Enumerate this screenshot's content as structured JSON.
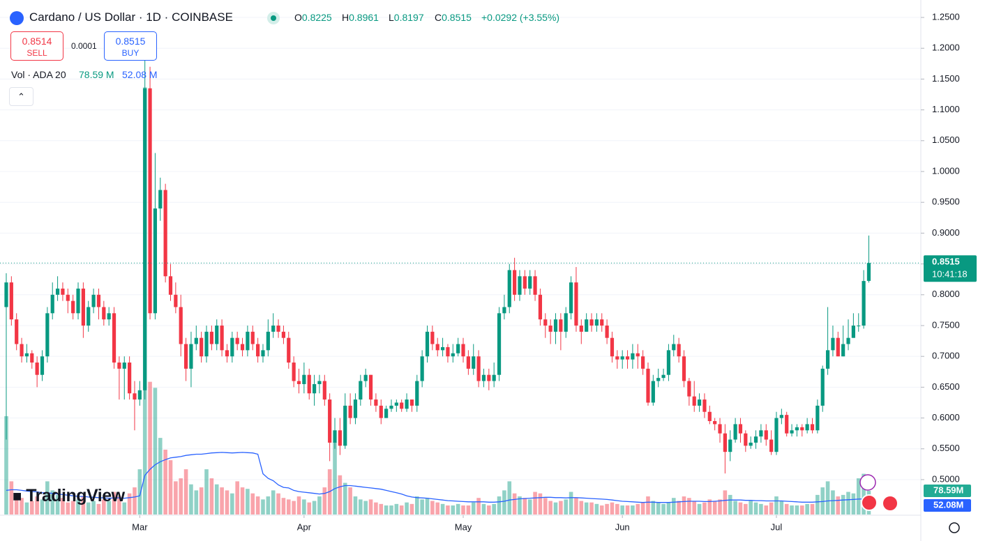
{
  "header": {
    "symbol": "Cardano / US Dollar · 1D · COINBASE",
    "ohlc_labels": [
      "O",
      "H",
      "L",
      "C"
    ],
    "change": "+0.0292 (+3.55%)"
  },
  "trade": {
    "sell_price": 0.8514,
    "sell_label": "SELL",
    "spread": 0.0001,
    "buy_price": 0.8515,
    "buy_label": "BUY"
  },
  "branding": "TradingView",
  "chart_data": {
    "type": "candlestick",
    "categories": [
      null,
      null,
      null,
      null,
      null,
      null,
      null,
      null,
      null,
      null,
      null,
      null,
      null,
      null,
      null,
      null,
      null,
      null,
      null,
      null,
      null,
      null,
      null,
      null,
      null,
      null,
      "Mar",
      null,
      null,
      null,
      null,
      null,
      null,
      null,
      null,
      null,
      null,
      null,
      null,
      null,
      null,
      null,
      null,
      null,
      null,
      null,
      null,
      null,
      null,
      null,
      null,
      null,
      null,
      null,
      null,
      null,
      null,
      null,
      "Apr",
      null,
      null,
      null,
      null,
      null,
      null,
      null,
      null,
      null,
      null,
      null,
      null,
      null,
      null,
      null,
      null,
      null,
      null,
      null,
      null,
      null,
      null,
      null,
      null,
      null,
      null,
      null,
      null,
      null,
      null,
      "May",
      null,
      null,
      null,
      null,
      null,
      null,
      null,
      null,
      null,
      null,
      null,
      null,
      null,
      null,
      null,
      null,
      null,
      null,
      null,
      null,
      null,
      null,
      null,
      null,
      null,
      null,
      null,
      null,
      null,
      null,
      "Jun",
      null,
      null,
      null,
      null,
      null,
      null,
      null,
      null,
      null,
      null,
      null,
      null,
      null,
      null,
      null,
      null,
      null,
      null,
      null,
      null,
      null,
      null,
      null,
      null,
      null,
      null,
      null,
      null,
      null,
      "Jul",
      null,
      null,
      null,
      null,
      null,
      null,
      null,
      null,
      null,
      null,
      null,
      null,
      null,
      null,
      null,
      null,
      null,
      null
    ],
    "open": [
      0.78,
      0.82,
      0.76,
      0.72,
      0.7,
      0.705,
      0.69,
      0.67,
      0.7,
      0.77,
      0.8,
      0.81,
      0.8,
      0.79,
      0.77,
      0.81,
      0.75,
      0.78,
      0.8,
      0.78,
      0.76,
      0.77,
      0.69,
      0.68,
      0.69,
      0.64,
      0.63,
      0.645,
      1.135,
      0.77,
      0.94,
      0.97,
      0.83,
      0.8,
      0.78,
      0.72,
      0.68,
      0.72,
      0.73,
      0.7,
      0.74,
      0.72,
      0.75,
      0.71,
      0.7,
      0.73,
      0.72,
      0.71,
      0.74,
      0.72,
      0.7,
      0.71,
      0.74,
      0.75,
      0.74,
      0.73,
      0.69,
      0.66,
      0.655,
      0.67,
      0.64,
      0.655,
      0.66,
      0.63,
      0.56,
      0.58,
      0.555,
      0.62,
      0.6,
      0.63,
      0.66,
      0.67,
      0.63,
      0.62,
      0.6,
      0.615,
      0.62,
      0.625,
      0.615,
      0.63,
      0.62,
      0.66,
      0.7,
      0.74,
      0.72,
      0.71,
      0.715,
      0.7,
      0.705,
      0.72,
      0.7,
      0.68,
      0.7,
      0.66,
      0.67,
      0.66,
      0.67,
      0.77,
      0.78,
      0.84,
      0.8,
      0.83,
      0.81,
      0.83,
      0.8,
      0.76,
      0.75,
      0.74,
      0.76,
      0.74,
      0.77,
      0.82,
      0.75,
      0.74,
      0.76,
      0.75,
      0.76,
      0.75,
      0.73,
      0.7,
      0.695,
      0.7,
      0.695,
      0.705,
      0.7,
      0.68,
      0.625,
      0.66,
      0.665,
      0.67,
      0.71,
      0.72,
      0.7,
      0.66,
      0.635,
      0.62,
      0.63,
      0.61,
      0.595,
      0.59,
      0.575,
      0.545,
      0.565,
      0.59,
      0.575,
      0.555,
      0.56,
      0.57,
      0.58,
      0.565,
      0.545,
      0.6,
      0.605,
      0.575,
      0.58,
      0.585,
      0.58,
      0.59,
      0.58,
      0.62,
      0.68,
      0.71,
      0.73,
      0.7,
      0.72,
      0.73,
      0.75,
      0.75,
      0.8225
    ],
    "high": [
      0.835,
      0.83,
      0.77,
      0.73,
      0.72,
      0.71,
      0.7,
      0.71,
      0.78,
      0.82,
      0.83,
      0.82,
      0.81,
      0.8,
      0.82,
      0.82,
      0.79,
      0.81,
      0.81,
      0.79,
      0.78,
      0.78,
      0.7,
      0.7,
      0.7,
      0.66,
      0.66,
      1.18,
      1.17,
      1.03,
      0.99,
      0.98,
      0.85,
      0.82,
      0.8,
      0.73,
      0.74,
      0.75,
      0.74,
      0.75,
      0.75,
      0.76,
      0.76,
      0.72,
      0.74,
      0.74,
      0.73,
      0.75,
      0.75,
      0.73,
      0.72,
      0.76,
      0.77,
      0.76,
      0.75,
      0.74,
      0.7,
      0.68,
      0.69,
      0.68,
      0.67,
      0.67,
      0.67,
      0.64,
      0.6,
      0.6,
      0.64,
      0.64,
      0.64,
      0.67,
      0.68,
      0.67,
      0.64,
      0.63,
      0.62,
      0.63,
      0.63,
      0.63,
      0.64,
      0.63,
      0.67,
      0.71,
      0.75,
      0.75,
      0.73,
      0.73,
      0.72,
      0.72,
      0.73,
      0.73,
      0.71,
      0.72,
      0.71,
      0.68,
      0.68,
      0.69,
      0.78,
      0.8,
      0.85,
      0.86,
      0.84,
      0.84,
      0.84,
      0.84,
      0.81,
      0.77,
      0.76,
      0.77,
      0.77,
      0.78,
      0.83,
      0.845,
      0.76,
      0.77,
      0.77,
      0.77,
      0.77,
      0.76,
      0.74,
      0.71,
      0.71,
      0.71,
      0.72,
      0.72,
      0.71,
      0.69,
      0.67,
      0.68,
      0.68,
      0.72,
      0.735,
      0.73,
      0.71,
      0.665,
      0.66,
      0.64,
      0.64,
      0.62,
      0.6,
      0.6,
      0.59,
      0.58,
      0.6,
      0.6,
      0.58,
      0.57,
      0.58,
      0.59,
      0.59,
      0.58,
      0.61,
      0.615,
      0.61,
      0.59,
      0.59,
      0.59,
      0.6,
      0.6,
      0.63,
      0.685,
      0.78,
      0.75,
      0.74,
      0.75,
      0.76,
      0.77,
      0.77,
      0.84,
      0.8961
    ],
    "low": [
      0.565,
      0.75,
      0.71,
      0.69,
      0.69,
      0.68,
      0.65,
      0.66,
      0.69,
      0.76,
      0.79,
      0.79,
      0.77,
      0.76,
      0.76,
      0.73,
      0.74,
      0.77,
      0.76,
      0.75,
      0.75,
      0.68,
      0.63,
      0.63,
      0.63,
      0.58,
      0.62,
      0.63,
      0.76,
      0.76,
      0.92,
      0.82,
      0.79,
      0.77,
      0.7,
      0.66,
      0.65,
      0.71,
      0.69,
      0.69,
      0.71,
      0.71,
      0.7,
      0.69,
      0.69,
      0.71,
      0.7,
      0.7,
      0.71,
      0.69,
      0.69,
      0.7,
      0.73,
      0.73,
      0.72,
      0.68,
      0.65,
      0.64,
      0.64,
      0.63,
      0.62,
      0.64,
      0.62,
      0.53,
      0.55,
      0.54,
      0.55,
      0.59,
      0.59,
      0.62,
      0.65,
      0.62,
      0.61,
      0.59,
      0.6,
      0.61,
      0.61,
      0.61,
      0.61,
      0.61,
      0.61,
      0.65,
      0.69,
      0.71,
      0.7,
      0.7,
      0.69,
      0.69,
      0.7,
      0.69,
      0.67,
      0.67,
      0.65,
      0.65,
      0.645,
      0.65,
      0.66,
      0.76,
      0.77,
      0.79,
      0.79,
      0.8,
      0.8,
      0.79,
      0.75,
      0.73,
      0.72,
      0.72,
      0.71,
      0.73,
      0.76,
      0.74,
      0.72,
      0.74,
      0.74,
      0.74,
      0.74,
      0.72,
      0.69,
      0.68,
      0.68,
      0.68,
      0.68,
      0.68,
      0.67,
      0.62,
      0.62,
      0.65,
      0.66,
      0.66,
      0.7,
      0.69,
      0.65,
      0.62,
      0.61,
      0.61,
      0.6,
      0.59,
      0.58,
      0.56,
      0.51,
      0.53,
      0.56,
      0.56,
      0.545,
      0.55,
      0.55,
      0.56,
      0.555,
      0.54,
      0.54,
      0.59,
      0.57,
      0.57,
      0.57,
      0.57,
      0.575,
      0.575,
      0.575,
      0.61,
      0.67,
      0.7,
      0.7,
      0.7,
      0.71,
      0.73,
      0.74,
      0.745,
      0.8197
    ],
    "close": [
      0.82,
      0.76,
      0.72,
      0.7,
      0.705,
      0.69,
      0.67,
      0.7,
      0.77,
      0.8,
      0.81,
      0.8,
      0.79,
      0.77,
      0.81,
      0.75,
      0.78,
      0.8,
      0.78,
      0.76,
      0.77,
      0.69,
      0.68,
      0.69,
      0.64,
      0.63,
      0.645,
      1.135,
      0.77,
      0.94,
      0.97,
      0.83,
      0.8,
      0.78,
      0.72,
      0.68,
      0.72,
      0.73,
      0.7,
      0.74,
      0.72,
      0.75,
      0.71,
      0.7,
      0.73,
      0.72,
      0.71,
      0.74,
      0.72,
      0.7,
      0.71,
      0.74,
      0.75,
      0.74,
      0.73,
      0.69,
      0.66,
      0.655,
      0.67,
      0.64,
      0.655,
      0.66,
      0.63,
      0.56,
      0.58,
      0.555,
      0.62,
      0.6,
      0.63,
      0.66,
      0.67,
      0.63,
      0.62,
      0.6,
      0.615,
      0.62,
      0.625,
      0.615,
      0.63,
      0.62,
      0.66,
      0.7,
      0.74,
      0.72,
      0.71,
      0.715,
      0.7,
      0.705,
      0.72,
      0.7,
      0.68,
      0.7,
      0.66,
      0.67,
      0.66,
      0.67,
      0.77,
      0.78,
      0.84,
      0.8,
      0.83,
      0.81,
      0.83,
      0.8,
      0.76,
      0.75,
      0.74,
      0.76,
      0.74,
      0.77,
      0.82,
      0.75,
      0.74,
      0.76,
      0.75,
      0.76,
      0.75,
      0.73,
      0.7,
      0.695,
      0.7,
      0.695,
      0.705,
      0.7,
      0.68,
      0.625,
      0.66,
      0.665,
      0.67,
      0.71,
      0.72,
      0.7,
      0.66,
      0.635,
      0.62,
      0.63,
      0.61,
      0.595,
      0.59,
      0.575,
      0.545,
      0.565,
      0.59,
      0.575,
      0.555,
      0.56,
      0.57,
      0.58,
      0.565,
      0.545,
      0.6,
      0.605,
      0.575,
      0.58,
      0.585,
      0.58,
      0.59,
      0.58,
      0.62,
      0.68,
      0.71,
      0.73,
      0.7,
      0.72,
      0.73,
      0.75,
      0.75,
      0.8223,
      0.8515
    ],
    "up_color": "#089981",
    "down_color": "#f23645",
    "ylim": [
      0.4434,
      1.2783
    ],
    "yticks": [
      {
        "value": 0.5,
        "label": "0.5000"
      },
      {
        "value": 0.55,
        "label": "0.5500"
      },
      {
        "value": 0.6,
        "label": "0.6000"
      },
      {
        "value": 0.65,
        "label": "0.6500"
      },
      {
        "value": 0.7,
        "label": "0.7000"
      },
      {
        "value": 0.75,
        "label": "0.7500"
      },
      {
        "value": 0.8,
        "label": "0.8000"
      },
      {
        "value": 0.85,
        "label": "0.8500"
      },
      {
        "value": 0.9,
        "label": "0.9000"
      },
      {
        "value": 0.95,
        "label": "0.9500"
      },
      {
        "value": 1.0,
        "label": "1.0000"
      },
      {
        "value": 1.05,
        "label": "1.0500"
      },
      {
        "value": 1.1,
        "label": "1.1000"
      },
      {
        "value": 1.15,
        "label": "1.1500"
      },
      {
        "value": 1.2,
        "label": "1.2000"
      },
      {
        "value": 1.25,
        "label": "1.2500"
      }
    ],
    "grid": true,
    "countdown": "10:41:18",
    "volume": {
      "title": "Vol · ADA 20",
      "ylim": [
        0,
        1500
      ],
      "ma_color": "#2962ff",
      "values": [
        326,
        110,
        70,
        55,
        40,
        45,
        60,
        50,
        110,
        80,
        65,
        55,
        40,
        45,
        50,
        60,
        40,
        45,
        35,
        50,
        45,
        75,
        60,
        40,
        70,
        90,
        150,
        1416,
        440,
        420,
        254,
        215,
        180,
        110,
        120,
        150,
        100,
        80,
        90,
        150,
        120,
        100,
        90,
        80,
        70,
        110,
        90,
        85,
        70,
        60,
        50,
        60,
        80,
        70,
        55,
        50,
        45,
        60,
        50,
        40,
        45,
        60,
        90,
        150,
        240,
        130,
        105,
        90,
        60,
        50,
        45,
        50,
        40,
        35,
        30,
        30,
        35,
        30,
        40,
        35,
        60,
        50,
        55,
        45,
        40,
        35,
        30,
        30,
        35,
        30,
        30,
        40,
        55,
        35,
        30,
        35,
        60,
        80,
        110,
        70,
        60,
        55,
        50,
        75,
        70,
        55,
        45,
        40,
        45,
        50,
        75,
        55,
        45,
        40,
        40,
        35,
        30,
        35,
        40,
        35,
        30,
        30,
        30,
        35,
        40,
        60,
        45,
        40,
        35,
        40,
        55,
        45,
        60,
        55,
        45,
        35,
        40,
        50,
        45,
        50,
        80,
        65,
        45,
        40,
        35,
        45,
        40,
        35,
        30,
        40,
        60,
        45,
        35,
        30,
        30,
        30,
        35,
        35,
        65,
        90,
        110,
        80,
        60,
        65,
        75,
        70,
        120,
        135,
        78.59
      ],
      "ma_values": [
        80,
        82,
        82,
        80,
        78,
        76,
        75,
        72,
        72,
        70,
        68,
        66,
        64,
        62,
        60,
        60,
        58,
        57,
        56,
        55,
        54,
        55,
        55,
        54,
        56,
        58,
        62,
        130,
        150,
        165,
        175,
        182,
        188,
        190,
        192,
        196,
        198,
        200,
        200,
        202,
        204,
        205,
        206,
        205,
        204,
        205,
        206,
        205,
        204,
        200,
        135,
        120,
        112,
        98,
        90,
        88,
        80,
        76,
        74,
        72,
        70,
        68,
        70,
        76,
        86,
        92,
        96,
        96,
        94,
        92,
        90,
        88,
        86,
        84,
        80,
        76,
        72,
        68,
        62,
        58,
        56,
        55,
        54,
        52,
        50,
        48,
        46,
        45,
        44,
        43,
        42,
        42,
        42,
        42,
        41,
        41,
        42,
        44,
        48,
        50,
        52,
        53,
        54,
        55,
        56,
        57,
        57,
        56,
        56,
        55,
        56,
        56,
        55,
        54,
        53,
        52,
        51,
        50,
        48,
        46,
        44,
        43,
        42,
        41,
        40,
        41,
        41,
        40,
        40,
        40,
        41,
        42,
        43,
        44,
        44,
        44,
        43,
        43,
        44,
        45,
        47,
        48,
        48,
        48,
        47,
        47,
        46,
        46,
        45,
        45,
        45,
        45,
        44,
        43,
        42,
        41,
        41,
        41,
        42,
        43,
        45,
        46,
        47,
        48,
        49,
        50,
        51,
        51.5,
        52.08
      ],
      "last_labels": {
        "value_header": "78.59 M",
        "ma_header": "52.08 M",
        "value_axis": "78.59M",
        "ma_axis": "52.08M"
      }
    }
  }
}
